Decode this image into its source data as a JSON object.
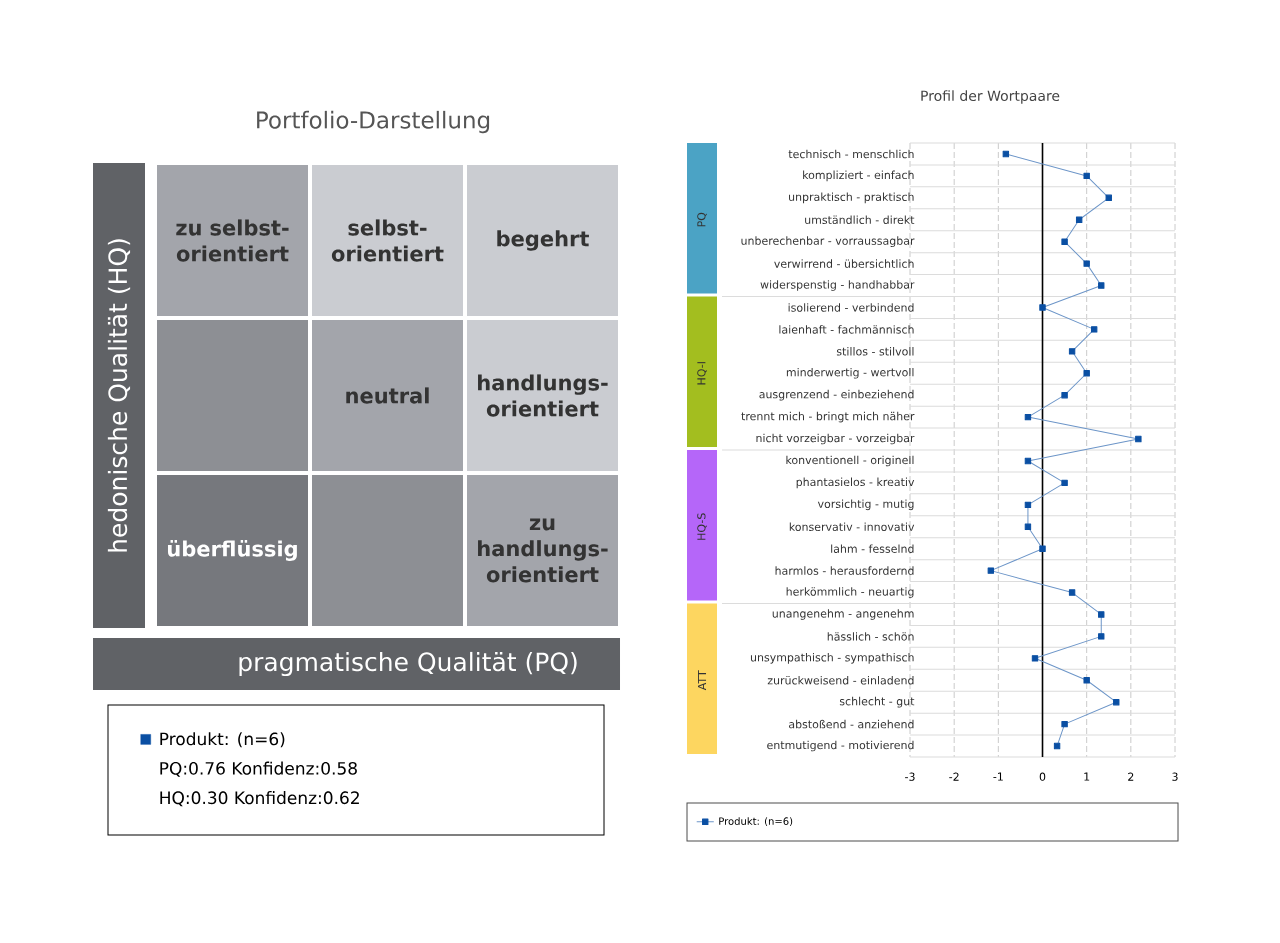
{
  "chart_data": [
    {
      "type": "other",
      "title": "Portfolio-Darstellung",
      "xlabel": "pragmatische Qualität (PQ)",
      "ylabel": "hedonische Qualität (HQ)",
      "series": [
        {
          "name": "Produkt: (n=6)",
          "color": "#0a4fa3"
        }
      ],
      "legend": "bottom",
      "annotations": [
        "zu selbst-orientiert",
        "selbst-orientiert",
        "begehrt",
        "neutral",
        "handlungs-orientiert",
        "überflüssig",
        "zu handlungs-orientiert",
        "PQ:0.76 Konfidenz:0.58",
        "HQ:0.30 Konfidenz:0.62"
      ]
    },
    {
      "type": "line",
      "title": "Profil der Wortpaare",
      "orientation": "horizontal",
      "categories": [
        "technisch - menschlich",
        "kompliziert - einfach",
        "unpraktisch - praktisch",
        "umständlich - direkt",
        "unberechenbar - vorraussagbar",
        "verwirrend - übersichtlich",
        "widerspenstig - handhabbar",
        "isolierend - verbindend",
        "laienhaft - fachmännisch",
        "stillos - stilvoll",
        "minderwertig - wertvoll",
        "ausgrenzend - einbeziehend",
        "trennt mich - bringt mich näher",
        "nicht vorzeigbar - vorzeigbar",
        "konventionell - originell",
        "phantasielos - kreativ",
        "vorsichtig - mutig",
        "konservativ - innovativ",
        "lahm - fesselnd",
        "harmlos - herausfordernd",
        "herkömmlich - neuartig",
        "unangenehm - angenehm",
        "hässlich - schön",
        "unsympathisch - sympathisch",
        "zurückweisend - einladend",
        "schlecht - gut",
        "abstoßend - anziehend",
        "entmutigend - motivierend"
      ],
      "series": [
        {
          "name": "Produkt: (n=6)",
          "color": "#0a4fa3",
          "values": [
            -0.83,
            1.0,
            1.5,
            0.83,
            0.5,
            1.0,
            1.33,
            0,
            1.17,
            0.67,
            1.0,
            0.5,
            -0.33,
            2.17,
            -0.33,
            0.5,
            -0.33,
            -0.33,
            0,
            -1.17,
            0.67,
            1.33,
            1.33,
            -0.17,
            1.0,
            1.67,
            0.5,
            0.33
          ]
        }
      ],
      "xlim": [
        -3,
        3
      ],
      "xticks": [
        -3,
        -2,
        -1,
        0,
        1,
        2,
        3
      ],
      "grid": true,
      "marker": "square",
      "line_style": "solid",
      "legend": "bottom",
      "ref_lines": [
        {
          "axis": "x",
          "value": 0,
          "color": "#000000"
        }
      ],
      "annotations": [
        "PQ",
        "HQ-I",
        "HQ-S",
        "ATT"
      ]
    }
  ]
}
